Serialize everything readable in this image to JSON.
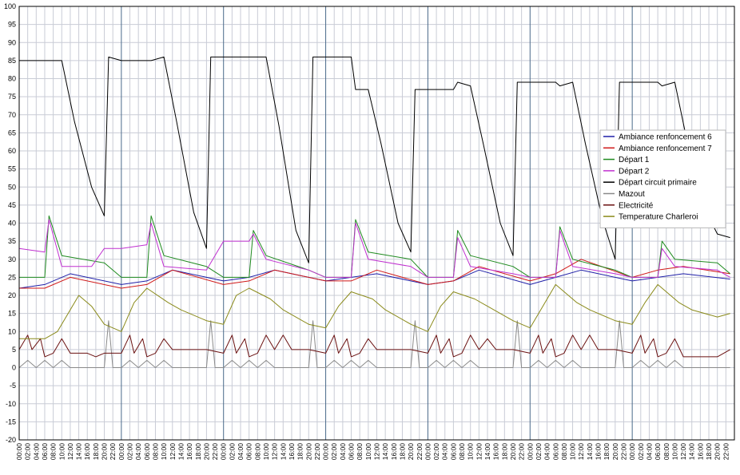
{
  "chart_data": {
    "type": "line",
    "title": "",
    "xlabel": "",
    "ylabel": "",
    "ylim": [
      -20,
      100
    ],
    "yticks": [
      100,
      95,
      90,
      85,
      80,
      75,
      70,
      65,
      60,
      55,
      50,
      45,
      40,
      35,
      30,
      25,
      20,
      15,
      10,
      5,
      0,
      -5,
      -10,
      -15,
      -20
    ],
    "grid": true,
    "legend_position": "right",
    "days": 7,
    "xtick_labels": [
      "00:00",
      "02:00",
      "04:00",
      "06:00",
      "08:00",
      "10:00",
      "12:00",
      "14:00",
      "16:00",
      "18:00",
      "20:00",
      "22:00"
    ],
    "colors": {
      "grid_minor": "#c9ccd6",
      "grid_major": "#4a6a8a",
      "axis": "#000000"
    },
    "series": [
      {
        "name": "Ambiance renfoncement 6",
        "color": "#1f1fa8",
        "x": [
          0,
          6,
          12,
          24,
          30,
          36,
          48,
          54,
          60,
          72,
          78,
          84,
          96,
          102,
          108,
          120,
          126,
          132,
          144,
          150,
          156,
          167
        ],
        "values": [
          22,
          23,
          26,
          23,
          24,
          27,
          24,
          25,
          27,
          24,
          25,
          26,
          23,
          24,
          27,
          23,
          25,
          27,
          24,
          25,
          26,
          24.5
        ]
      },
      {
        "name": "Ambiance renfoncement 7",
        "color": "#d01818",
        "x": [
          0,
          6,
          12,
          24,
          30,
          36,
          48,
          54,
          60,
          72,
          78,
          84,
          96,
          102,
          108,
          120,
          126,
          132,
          144,
          150,
          156,
          167
        ],
        "values": [
          22,
          22,
          25,
          22,
          23,
          27,
          23,
          24,
          27,
          24,
          24,
          27,
          23,
          24,
          28,
          24,
          26,
          30,
          25,
          27,
          28,
          26
        ]
      },
      {
        "name": " Départ 1",
        "color": "#1e8a1e",
        "x": [
          0,
          6,
          7,
          10,
          20,
          24,
          30,
          31,
          34,
          44,
          48,
          54,
          55,
          58,
          68,
          72,
          78,
          79,
          82,
          92,
          96,
          102,
          103,
          106,
          116,
          120,
          126,
          127,
          130,
          140,
          144,
          150,
          151,
          154,
          164,
          167
        ],
        "values": [
          25,
          25,
          42,
          31,
          29,
          25,
          25,
          42,
          31,
          28,
          25,
          25,
          38,
          31,
          27,
          25,
          25,
          41,
          32,
          30,
          25,
          25,
          38,
          31,
          28,
          25,
          25,
          39,
          30,
          27,
          25,
          25,
          35,
          30,
          29,
          26
        ]
      },
      {
        "name": "Départ 2",
        "color": "#c030d0",
        "x": [
          0,
          6,
          7,
          10,
          17,
          20,
          24,
          30,
          31,
          34,
          44,
          48,
          54,
          55,
          58,
          68,
          72,
          78,
          79,
          82,
          92,
          96,
          102,
          103,
          106,
          116,
          120,
          126,
          127,
          130,
          140,
          144,
          150,
          151,
          154,
          164,
          167
        ],
        "values": [
          33,
          32,
          41,
          28,
          28,
          33,
          33,
          34,
          40,
          28,
          27,
          35,
          35,
          37,
          30,
          27,
          25,
          25,
          40,
          30,
          28,
          25,
          25,
          36,
          28,
          26,
          25,
          25,
          38,
          28,
          26,
          25,
          25,
          33,
          28,
          27,
          25
        ]
      },
      {
        "name": "Départ circuit primaire",
        "color": "#000000",
        "x": [
          0,
          6,
          7,
          10,
          13,
          17,
          20,
          21,
          24,
          30,
          31,
          34,
          37,
          41,
          44,
          45,
          48,
          54,
          55,
          58,
          61,
          65,
          68,
          69,
          72,
          78,
          79,
          82,
          85,
          89,
          92,
          93,
          96,
          102,
          103,
          106,
          109,
          113,
          116,
          117,
          120,
          126,
          127,
          130,
          133,
          137,
          140,
          141,
          144,
          150,
          151,
          154,
          157,
          161,
          164,
          167
        ],
        "values": [
          85,
          85,
          85,
          85,
          68,
          50,
          42,
          86,
          85,
          85,
          85,
          86,
          68,
          43,
          33,
          86,
          86,
          86,
          86,
          86,
          67,
          38,
          29,
          86,
          86,
          86,
          77,
          77,
          62,
          40,
          32,
          77,
          77,
          77,
          79,
          78,
          62,
          40,
          31,
          79,
          79,
          79,
          78,
          79,
          62,
          41,
          30,
          79,
          79,
          79,
          78,
          79,
          62,
          44,
          37,
          36
        ]
      },
      {
        "name": "Mazout",
        "color": "#8a8a8a",
        "x": [
          0,
          2,
          4,
          6,
          8,
          10,
          12,
          16,
          20,
          21,
          22,
          24,
          26,
          28,
          30,
          32,
          34,
          36,
          40,
          44,
          45,
          46,
          48,
          50,
          52,
          54,
          56,
          58,
          60,
          64,
          68,
          69,
          70,
          72,
          74,
          76,
          78,
          80,
          82,
          84,
          88,
          92,
          93,
          94,
          96,
          98,
          100,
          102,
          104,
          106,
          108,
          112,
          116,
          117,
          118,
          120,
          122,
          124,
          126,
          128,
          130,
          132,
          136,
          140,
          141,
          142,
          144,
          146,
          148,
          150,
          152,
          154,
          156,
          160,
          164,
          167
        ],
        "values": [
          0,
          2,
          0,
          2,
          0,
          2,
          0,
          0,
          0,
          13,
          0,
          0,
          2,
          0,
          2,
          0,
          2,
          0,
          0,
          0,
          13,
          0,
          0,
          2,
          0,
          2,
          0,
          2,
          0,
          0,
          0,
          13,
          0,
          0,
          2,
          0,
          2,
          0,
          2,
          0,
          0,
          0,
          13,
          0,
          0,
          2,
          0,
          2,
          0,
          2,
          0,
          0,
          0,
          13,
          0,
          0,
          2,
          0,
          2,
          0,
          2,
          0,
          0,
          0,
          13,
          0,
          0,
          2,
          0,
          2,
          0,
          2,
          0,
          0,
          0,
          0
        ]
      },
      {
        "name": "Electricité",
        "color": "#6a1010",
        "x": [
          0,
          2,
          3,
          5,
          6,
          8,
          10,
          12,
          14,
          16,
          18,
          20,
          24,
          26,
          27,
          29,
          30,
          32,
          34,
          36,
          38,
          40,
          42,
          44,
          48,
          50,
          51,
          53,
          54,
          56,
          58,
          60,
          62,
          64,
          66,
          68,
          72,
          74,
          75,
          77,
          78,
          80,
          82,
          84,
          86,
          88,
          90,
          92,
          96,
          98,
          99,
          101,
          102,
          104,
          106,
          108,
          110,
          112,
          114,
          116,
          120,
          122,
          123,
          125,
          126,
          128,
          130,
          132,
          134,
          136,
          138,
          140,
          144,
          146,
          147,
          149,
          150,
          152,
          154,
          156,
          158,
          160,
          162,
          164,
          167
        ],
        "values": [
          5,
          9,
          5,
          8,
          3,
          4,
          8,
          4,
          4,
          4,
          3,
          4,
          4,
          9,
          4,
          8,
          3,
          4,
          8,
          5,
          5,
          5,
          5,
          5,
          4,
          9,
          4,
          8,
          3,
          4,
          9,
          5,
          9,
          5,
          5,
          5,
          4,
          9,
          4,
          8,
          3,
          4,
          8,
          5,
          5,
          5,
          5,
          5,
          4,
          9,
          4,
          8,
          3,
          4,
          9,
          5,
          8,
          5,
          5,
          5,
          4,
          9,
          4,
          8,
          3,
          4,
          9,
          5,
          9,
          5,
          5,
          5,
          4,
          9,
          4,
          8,
          3,
          4,
          8,
          3,
          3,
          3,
          3,
          3,
          5
        ]
      },
      {
        "name": "Temperature Charleroi",
        "color": "#8a8a1a",
        "x": [
          0,
          6,
          9,
          14,
          17,
          20,
          24,
          27,
          30,
          35,
          38,
          44,
          48,
          51,
          54,
          59,
          62,
          68,
          72,
          75,
          78,
          83,
          86,
          92,
          96,
          99,
          102,
          107,
          110,
          116,
          120,
          123,
          126,
          131,
          134,
          140,
          144,
          147,
          150,
          155,
          158,
          164,
          167
        ],
        "values": [
          8,
          8,
          10,
          20,
          17,
          12,
          10,
          18,
          22,
          18,
          16,
          13,
          12,
          20,
          22,
          19,
          16,
          12,
          11,
          17,
          21,
          19,
          16,
          12,
          10,
          17,
          21,
          19,
          17,
          13,
          11,
          17,
          23,
          18,
          16,
          13,
          12,
          18,
          23,
          18,
          16,
          14,
          15
        ]
      }
    ]
  }
}
